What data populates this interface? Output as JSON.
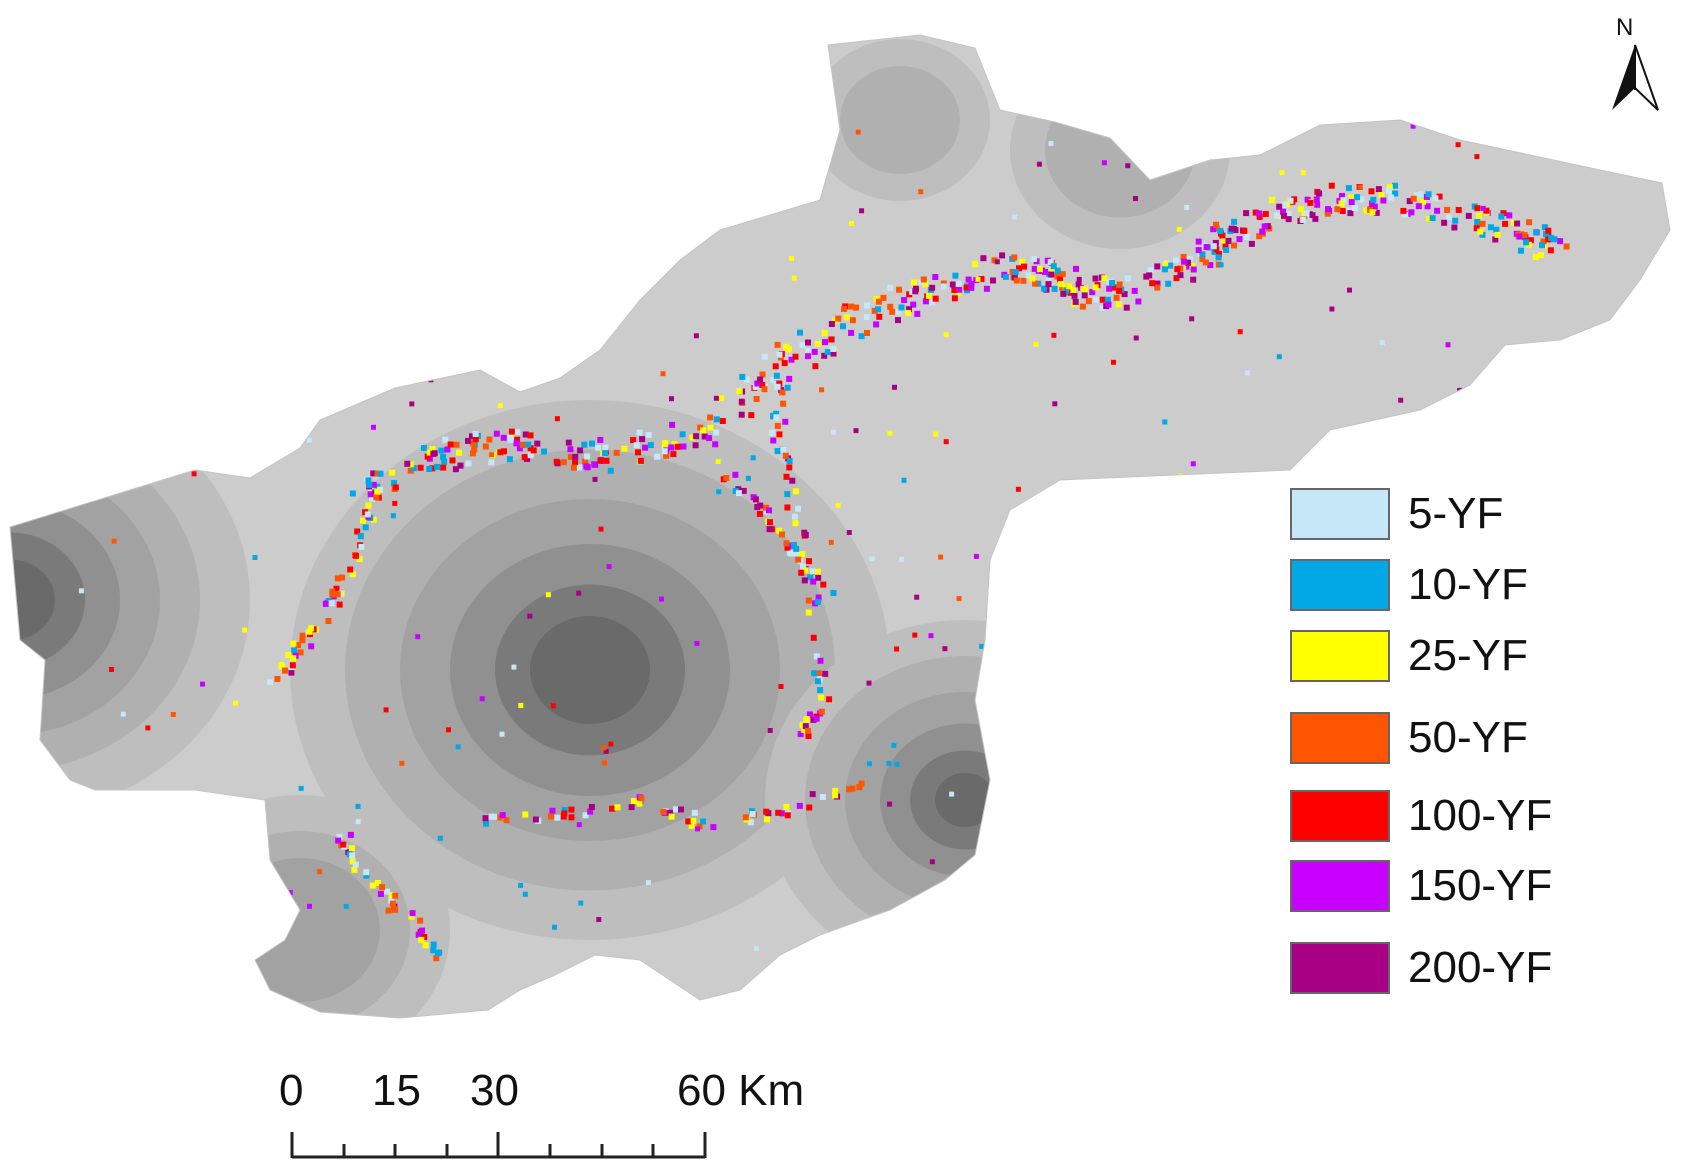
{
  "legend": {
    "items": [
      {
        "label": "5-YF",
        "color": "#c6e7f8"
      },
      {
        "label": "10-YF",
        "color": "#00a8e6"
      },
      {
        "label": "25-YF",
        "color": "#ffff00"
      },
      {
        "label": "50-YF",
        "color": "#ff5500"
      },
      {
        "label": "100-YF",
        "color": "#ff0000"
      },
      {
        "label": "150-YF",
        "color": "#c800ff"
      },
      {
        "label": "200-YF",
        "color": "#a80084"
      }
    ]
  },
  "scale_bar": {
    "labels": [
      "0",
      "15",
      "30",
      "60 Km"
    ]
  },
  "north_arrow": {
    "label": "N",
    "icon": "north-arrow-icon"
  },
  "basemap": {
    "shades": [
      "#cccccc",
      "#bebebe",
      "#b0b0b0",
      "#a2a2a2",
      "#909090",
      "#7a7a7a",
      "#6a6a6a"
    ]
  }
}
